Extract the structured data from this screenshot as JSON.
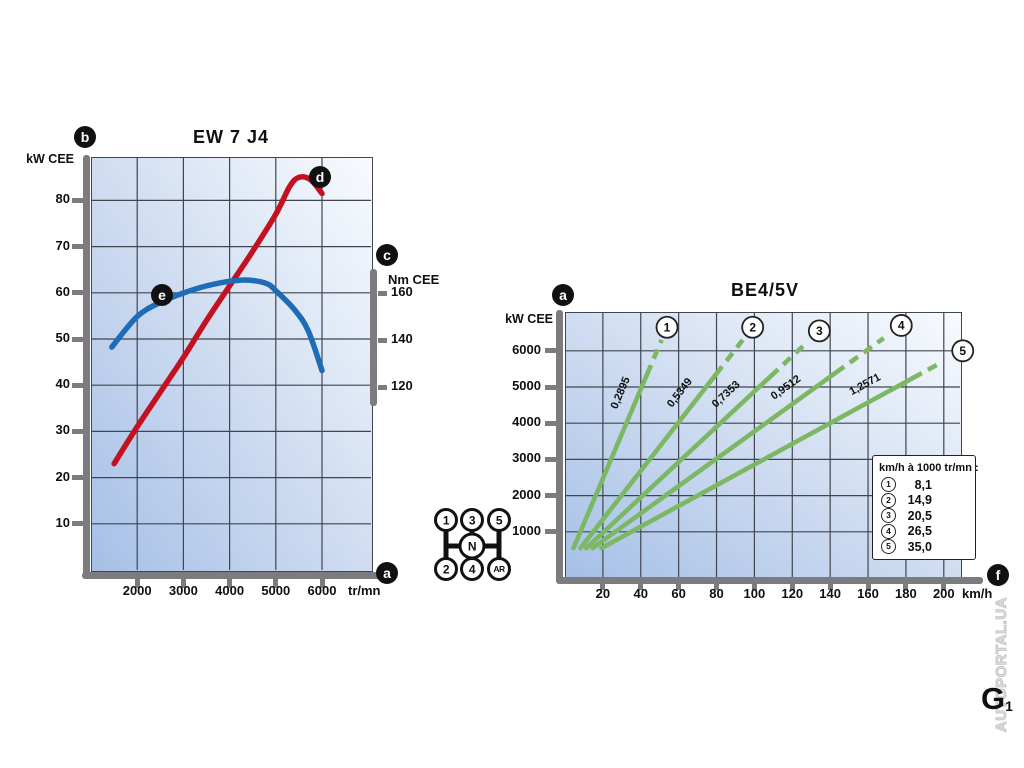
{
  "markers": {
    "a": "a",
    "b": "b",
    "c": "c",
    "d": "d",
    "e": "e",
    "f": "f"
  },
  "gear_shifter": {
    "top_row": [
      "1",
      "3",
      "5"
    ],
    "bottom_row": [
      "2",
      "4",
      "AR"
    ],
    "center": "N"
  },
  "watermark": {
    "text": "AUTOPORTAL.UA",
    "page_mark": "G",
    "page_mark_note": "1"
  },
  "colors": {
    "power_curve": "#c3111f",
    "torque_curve": "#1e6cb5",
    "gear_line": "#7cb863",
    "grid": "#41454d",
    "axis_bar": "#7c7c80",
    "plot_bg_start": "#a5c0e6",
    "plot_bg_mid": "#ccdaf0",
    "plot_bg_end": "#f8fbfe",
    "marker_bg": "#111111",
    "marker_fg": "#ffffff"
  },
  "chart_data": [
    {
      "type": "line",
      "title": "EW 7 J4",
      "xlabel": "tr/mn",
      "ylabel": "kW CEE",
      "y2label": "Nm CEE",
      "x_ticks": [
        2000,
        3000,
        4000,
        5000,
        6000
      ],
      "y_ticks": [
        10,
        20,
        30,
        40,
        50,
        60,
        70,
        80
      ],
      "y2_ticks": [
        120,
        140,
        160
      ],
      "xlim": [
        1000,
        7040
      ],
      "ylim": [
        0,
        89
      ],
      "y2lim": [
        42,
        218
      ],
      "grid": true,
      "series": [
        {
          "name": "puissance",
          "unit": "kW",
          "axis": "y",
          "color": "#c3111f",
          "points": [
            [
              1500,
              23
            ],
            [
              2000,
              31
            ],
            [
              2500,
              38.5
            ],
            [
              3000,
              46
            ],
            [
              3500,
              54
            ],
            [
              4000,
              61.5
            ],
            [
              4500,
              69
            ],
            [
              5000,
              77
            ],
            [
              5300,
              83
            ],
            [
              5500,
              85
            ],
            [
              5750,
              84.5
            ],
            [
              6000,
              81.5
            ]
          ]
        },
        {
          "name": "couple",
          "unit": "Nm",
          "axis": "y2",
          "color": "#1e6cb5",
          "points": [
            [
              1450,
              137
            ],
            [
              2000,
              150
            ],
            [
              2500,
              156
            ],
            [
              3000,
              160
            ],
            [
              3500,
              163
            ],
            [
              4000,
              165
            ],
            [
              4400,
              165.5
            ],
            [
              4800,
              164
            ],
            [
              5000,
              161
            ],
            [
              5400,
              153
            ],
            [
              5700,
              144
            ],
            [
              6000,
              127
            ]
          ]
        }
      ]
    },
    {
      "type": "line",
      "title": "BE4/5V",
      "xlabel": "km/h",
      "ylabel": "kW CEE",
      "x_ticks": [
        20,
        40,
        60,
        80,
        100,
        120,
        140,
        160,
        180,
        200
      ],
      "y_ticks": [
        1000,
        2000,
        3000,
        4000,
        5000,
        6000
      ],
      "xlim": [
        0,
        208
      ],
      "ylim": [
        0,
        7000
      ],
      "grid": true,
      "line_color": "#7cb863",
      "gears": [
        {
          "gear": "1",
          "ratio_label": "0,2895",
          "kmh_per_1000rpm": 8.1,
          "start_rpm": 550,
          "dash_from_rpm": 5350,
          "end_rpm": 6300,
          "circle_rpm": 6650,
          "label_rpm": 4650
        },
        {
          "gear": "2",
          "ratio_label": "0,5349",
          "kmh_per_1000rpm": 14.9,
          "start_rpm": 550,
          "dash_from_rpm": 5350,
          "end_rpm": 6300,
          "circle_rpm": 6650,
          "label_rpm": 4550
        },
        {
          "gear": "3",
          "ratio_label": "0,7353",
          "kmh_per_1000rpm": 20.5,
          "start_rpm": 550,
          "dash_from_rpm": 5300,
          "end_rpm": 6200,
          "circle_rpm": 6550,
          "label_rpm": 4450
        },
        {
          "gear": "4",
          "ratio_label": "0,9512",
          "kmh_per_1000rpm": 26.5,
          "start_rpm": 550,
          "dash_from_rpm": 5400,
          "end_rpm": 6350,
          "circle_rpm": 6700,
          "label_rpm": 4600
        },
        {
          "gear": "5",
          "ratio_label": "1,2571",
          "kmh_per_1000rpm": 35.0,
          "start_rpm": 550,
          "dash_from_rpm": 5250,
          "end_rpm": 5700,
          "circle_rpm": 6000,
          "label_rpm": 4650
        }
      ],
      "legend": {
        "position": "bottom-right",
        "title": "km/h à 1000 tr/mn :",
        "items": [
          {
            "gear": "1",
            "value": "8,1"
          },
          {
            "gear": "2",
            "value": "14,9"
          },
          {
            "gear": "3",
            "value": "20,5"
          },
          {
            "gear": "4",
            "value": "26,5"
          },
          {
            "gear": "5",
            "value": "35,0"
          }
        ]
      }
    }
  ]
}
